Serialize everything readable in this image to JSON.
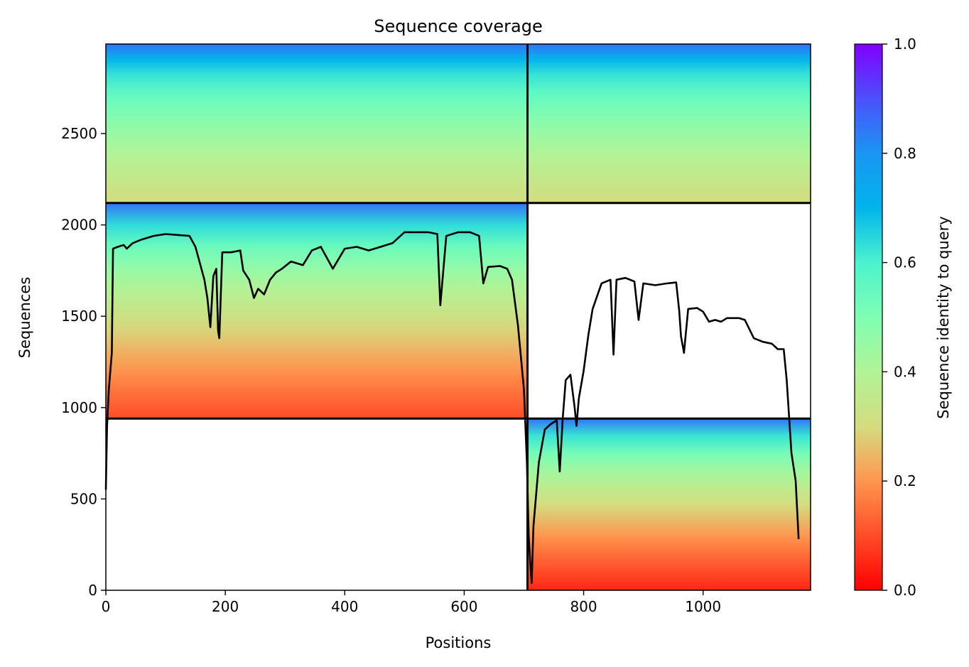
{
  "chart_data": {
    "type": "heatmap",
    "title": "Sequence coverage",
    "xlabel": "Positions",
    "ylabel": "Sequences",
    "colorbar_label": "Sequence identity to query",
    "xlim": [
      0,
      1180
    ],
    "ylim": [
      0,
      2990
    ],
    "xticks": [
      0,
      200,
      400,
      600,
      800,
      1000
    ],
    "yticks": [
      0,
      500,
      1000,
      1500,
      2000,
      2500
    ],
    "colorbar_ticks": [
      "0.0",
      "0.2",
      "0.4",
      "0.6",
      "0.8",
      "1.0"
    ],
    "colormap": "rainbow_r",
    "colorbar_range": [
      0,
      1
    ],
    "blocks": [
      {
        "name": "top-left",
        "x": [
          0,
          706
        ],
        "y": [
          2120,
          2990
        ],
        "identity_top": 0.85,
        "identity_bottom": 0.3
      },
      {
        "name": "top-right",
        "x": [
          706,
          1180
        ],
        "y": [
          2120,
          2990
        ],
        "identity_top": 0.85,
        "identity_bottom": 0.3
      },
      {
        "name": "middle-left",
        "x": [
          0,
          706
        ],
        "y": [
          940,
          2120
        ],
        "identity_top": 0.85,
        "identity_bottom": 0.1
      },
      {
        "name": "bottom-right",
        "x": [
          706,
          1180
        ],
        "y": [
          0,
          940
        ],
        "identity_top": 0.85,
        "identity_bottom": 0.05
      }
    ],
    "dividers": {
      "vertical_x": 706,
      "horizontal_y": [
        940,
        2120
      ]
    },
    "coverage_line": [
      [
        0,
        550
      ],
      [
        2,
        900
      ],
      [
        5,
        1100
      ],
      [
        10,
        1300
      ],
      [
        12,
        1870
      ],
      [
        20,
        1880
      ],
      [
        30,
        1890
      ],
      [
        35,
        1870
      ],
      [
        45,
        1900
      ],
      [
        60,
        1920
      ],
      [
        80,
        1940
      ],
      [
        100,
        1950
      ],
      [
        120,
        1945
      ],
      [
        140,
        1940
      ],
      [
        150,
        1880
      ],
      [
        160,
        1760
      ],
      [
        165,
        1700
      ],
      [
        170,
        1600
      ],
      [
        175,
        1440
      ],
      [
        180,
        1720
      ],
      [
        185,
        1760
      ],
      [
        188,
        1420
      ],
      [
        190,
        1380
      ],
      [
        195,
        1850
      ],
      [
        210,
        1850
      ],
      [
        225,
        1860
      ],
      [
        230,
        1750
      ],
      [
        240,
        1700
      ],
      [
        248,
        1600
      ],
      [
        255,
        1650
      ],
      [
        265,
        1620
      ],
      [
        275,
        1700
      ],
      [
        285,
        1740
      ],
      [
        295,
        1760
      ],
      [
        310,
        1800
      ],
      [
        330,
        1780
      ],
      [
        345,
        1860
      ],
      [
        360,
        1880
      ],
      [
        380,
        1760
      ],
      [
        400,
        1870
      ],
      [
        420,
        1880
      ],
      [
        440,
        1860
      ],
      [
        460,
        1880
      ],
      [
        480,
        1900
      ],
      [
        500,
        1960
      ],
      [
        520,
        1960
      ],
      [
        540,
        1960
      ],
      [
        555,
        1950
      ],
      [
        560,
        1560
      ],
      [
        570,
        1940
      ],
      [
        590,
        1960
      ],
      [
        610,
        1960
      ],
      [
        625,
        1940
      ],
      [
        632,
        1680
      ],
      [
        640,
        1770
      ],
      [
        660,
        1775
      ],
      [
        672,
        1760
      ],
      [
        680,
        1700
      ],
      [
        690,
        1450
      ],
      [
        700,
        1100
      ],
      [
        705,
        700
      ],
      [
        708,
        300
      ],
      [
        710,
        180
      ],
      [
        713,
        40
      ],
      [
        716,
        350
      ],
      [
        725,
        700
      ],
      [
        735,
        880
      ],
      [
        745,
        910
      ],
      [
        750,
        920
      ],
      [
        755,
        930
      ],
      [
        760,
        650
      ],
      [
        765,
        940
      ],
      [
        770,
        1150
      ],
      [
        778,
        1180
      ],
      [
        785,
        1000
      ],
      [
        788,
        900
      ],
      [
        792,
        1050
      ],
      [
        800,
        1200
      ],
      [
        808,
        1400
      ],
      [
        815,
        1540
      ],
      [
        830,
        1680
      ],
      [
        845,
        1700
      ],
      [
        850,
        1290
      ],
      [
        855,
        1700
      ],
      [
        870,
        1710
      ],
      [
        885,
        1690
      ],
      [
        892,
        1480
      ],
      [
        900,
        1680
      ],
      [
        920,
        1670
      ],
      [
        940,
        1680
      ],
      [
        955,
        1685
      ],
      [
        960,
        1530
      ],
      [
        963,
        1390
      ],
      [
        968,
        1300
      ],
      [
        975,
        1540
      ],
      [
        990,
        1545
      ],
      [
        1000,
        1525
      ],
      [
        1010,
        1470
      ],
      [
        1020,
        1480
      ],
      [
        1030,
        1470
      ],
      [
        1040,
        1490
      ],
      [
        1060,
        1490
      ],
      [
        1070,
        1480
      ],
      [
        1085,
        1380
      ],
      [
        1100,
        1360
      ],
      [
        1115,
        1350
      ],
      [
        1125,
        1320
      ],
      [
        1135,
        1320
      ],
      [
        1140,
        1150
      ],
      [
        1148,
        750
      ],
      [
        1155,
        600
      ],
      [
        1160,
        280
      ]
    ]
  }
}
